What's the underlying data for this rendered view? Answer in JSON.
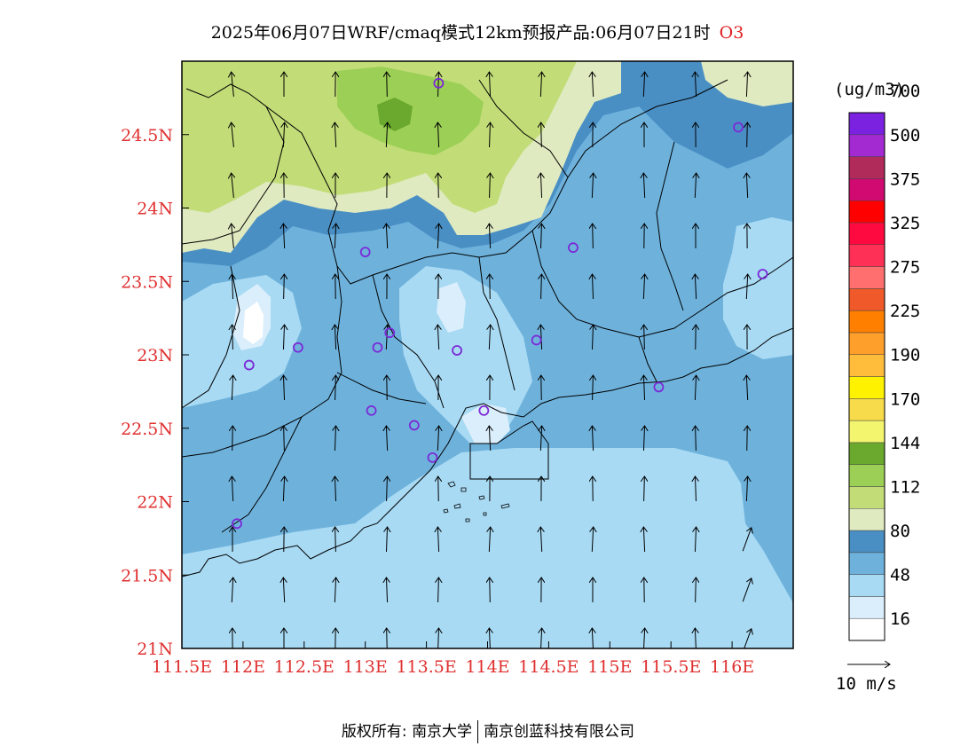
{
  "title": {
    "text": "2025年06月07日WRF/cmaq模式12km预报产品:06月07日21时",
    "species": "O3"
  },
  "legend": {
    "unit": "(ug/m3)",
    "bins": [
      {
        "color": "#ffffff"
      },
      {
        "color": "#dbeefb"
      },
      {
        "color": "#a8daf4"
      },
      {
        "color": "#6eb2dc"
      },
      {
        "color": "#4a8fc4"
      },
      {
        "color": "#dfeac0"
      },
      {
        "color": "#c2dd78"
      },
      {
        "color": "#9ccf55"
      },
      {
        "color": "#6aa82e"
      },
      {
        "color": "#f3f56e"
      },
      {
        "color": "#f7db4a"
      },
      {
        "color": "#fff200"
      },
      {
        "color": "#ffbd3b"
      },
      {
        "color": "#ff9f2b"
      },
      {
        "color": "#ff8000"
      },
      {
        "color": "#f05a2a"
      },
      {
        "color": "#ff6f6f"
      },
      {
        "color": "#ff3055"
      },
      {
        "color": "#ff0a40"
      },
      {
        "color": "#ff0000"
      },
      {
        "color": "#d00a70"
      },
      {
        "color": "#b02a5a"
      },
      {
        "color": "#a22ad0"
      },
      {
        "color": "#7a22e0"
      }
    ],
    "labels": [
      "16",
      "48",
      "80",
      "112",
      "144",
      "170",
      "190",
      "225",
      "275",
      "325",
      "375",
      "500",
      "700"
    ],
    "wind_reference": "10 m/s"
  },
  "axes": {
    "x_ticks": [
      "111.5E",
      "112E",
      "112.5E",
      "113E",
      "113.5E",
      "114E",
      "114.5E",
      "115E",
      "115.5E",
      "116E"
    ],
    "y_ticks": [
      "21N",
      "21.5N",
      "22N",
      "22.5N",
      "23N",
      "23.5N",
      "24N",
      "24.5N"
    ],
    "lon_range": [
      111.5,
      116.5
    ],
    "lat_range": [
      21.0,
      25.0
    ]
  },
  "stations": [
    {
      "lon": 113.6,
      "lat": 24.85
    },
    {
      "lon": 116.05,
      "lat": 24.55
    },
    {
      "lon": 113.0,
      "lat": 23.7
    },
    {
      "lon": 114.7,
      "lat": 23.73
    },
    {
      "lon": 116.25,
      "lat": 23.55
    },
    {
      "lon": 113.2,
      "lat": 23.15
    },
    {
      "lon": 112.45,
      "lat": 23.05
    },
    {
      "lon": 113.1,
      "lat": 23.05
    },
    {
      "lon": 113.75,
      "lat": 23.03
    },
    {
      "lon": 114.4,
      "lat": 23.1
    },
    {
      "lon": 112.05,
      "lat": 22.93
    },
    {
      "lon": 115.4,
      "lat": 22.78
    },
    {
      "lon": 113.05,
      "lat": 22.62
    },
    {
      "lon": 113.4,
      "lat": 22.52
    },
    {
      "lon": 113.97,
      "lat": 22.62
    },
    {
      "lon": 113.55,
      "lat": 22.3
    },
    {
      "lon": 111.95,
      "lat": 21.85
    }
  ],
  "copyright": {
    "prefix": "版权所有:",
    "org1": "南京大学",
    "org2": "南京创蓝科技有限公司"
  }
}
